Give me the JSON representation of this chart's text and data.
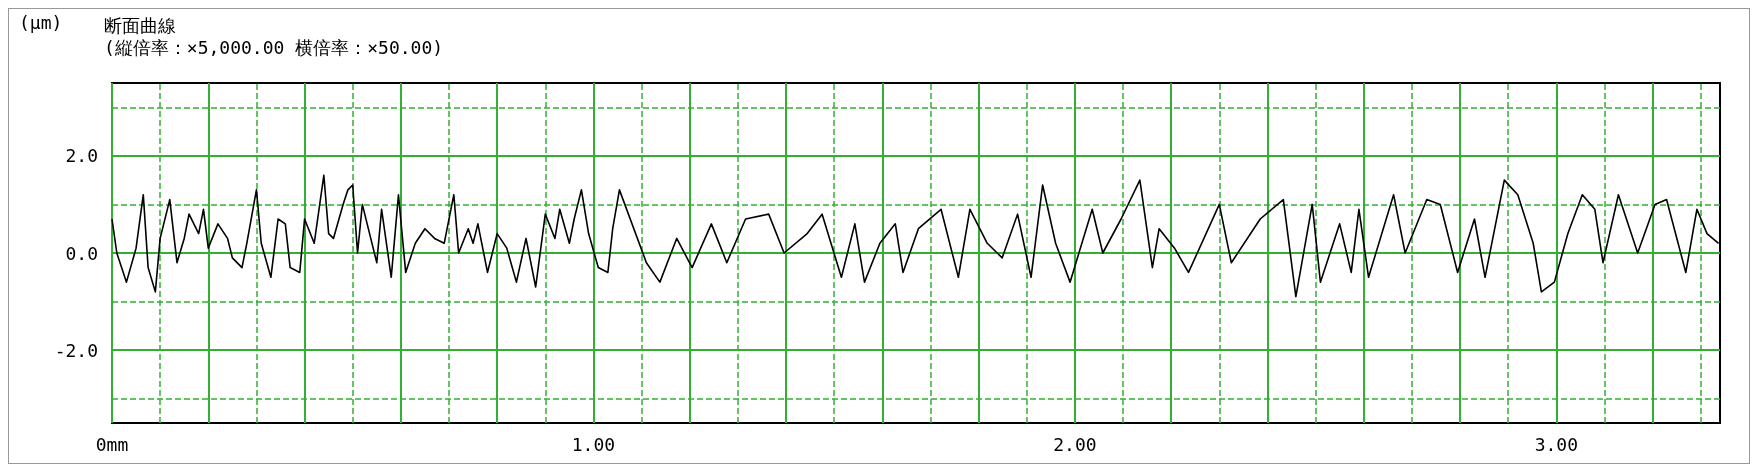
{
  "chart_data": {
    "type": "line",
    "title": "断面曲線",
    "subtitle": "(縦倍率：×5,000.00 横倍率：×50.00)",
    "ylabel": "(µm)",
    "xlim": [
      0,
      3.34
    ],
    "ylim": [
      -3.5,
      3.5
    ],
    "xticks": [
      {
        "value": 0,
        "label": "0mm"
      },
      {
        "value": 0.1,
        "label": null
      },
      {
        "value": 0.2,
        "label": null
      },
      {
        "value": 0.3,
        "label": null
      },
      {
        "value": 0.4,
        "label": null
      },
      {
        "value": 0.5,
        "label": null
      },
      {
        "value": 0.6,
        "label": null
      },
      {
        "value": 0.7,
        "label": null
      },
      {
        "value": 0.8,
        "label": null
      },
      {
        "value": 0.9,
        "label": null
      },
      {
        "value": 1,
        "label": "1.00"
      },
      {
        "value": 1.1,
        "label": null
      },
      {
        "value": 1.2,
        "label": null
      },
      {
        "value": 1.3,
        "label": null
      },
      {
        "value": 1.4,
        "label": null
      },
      {
        "value": 1.5,
        "label": null
      },
      {
        "value": 1.6,
        "label": null
      },
      {
        "value": 1.7,
        "label": null
      },
      {
        "value": 1.8,
        "label": null
      },
      {
        "value": 1.9,
        "label": null
      },
      {
        "value": 2,
        "label": "2.00"
      },
      {
        "value": 2.1,
        "label": null
      },
      {
        "value": 2.2,
        "label": null
      },
      {
        "value": 2.3,
        "label": null
      },
      {
        "value": 2.4,
        "label": null
      },
      {
        "value": 2.5,
        "label": null
      },
      {
        "value": 2.6,
        "label": null
      },
      {
        "value": 2.7,
        "label": null
      },
      {
        "value": 2.8,
        "label": null
      },
      {
        "value": 2.9,
        "label": null
      },
      {
        "value": 3,
        "label": "3.00"
      },
      {
        "value": 3.1,
        "label": null
      },
      {
        "value": 3.2,
        "label": null
      },
      {
        "value": 3.3,
        "label": null
      }
    ],
    "yticks": [
      {
        "value": -3,
        "label": null
      },
      {
        "value": -2,
        "label": "-2.0"
      },
      {
        "value": -1,
        "label": null
      },
      {
        "value": 0,
        "label": "0.0"
      },
      {
        "value": 1,
        "label": null
      },
      {
        "value": 2,
        "label": "2.0"
      },
      {
        "value": 3,
        "label": null
      }
    ],
    "grid": true,
    "marker": "none",
    "line_style": "solid",
    "series": [
      {
        "color": "#000000",
        "x": [
          0,
          0.01,
          0.03,
          0.05,
          0.065,
          0.075,
          0.09,
          0.1,
          0.12,
          0.135,
          0.15,
          0.16,
          0.18,
          0.19,
          0.2,
          0.22,
          0.24,
          0.25,
          0.27,
          0.28,
          0.3,
          0.31,
          0.33,
          0.345,
          0.36,
          0.37,
          0.39,
          0.4,
          0.42,
          0.44,
          0.45,
          0.46,
          0.48,
          0.49,
          0.5,
          0.51,
          0.52,
          0.535,
          0.55,
          0.56,
          0.58,
          0.595,
          0.61,
          0.63,
          0.65,
          0.67,
          0.69,
          0.71,
          0.72,
          0.74,
          0.75,
          0.76,
          0.78,
          0.8,
          0.82,
          0.84,
          0.86,
          0.88,
          0.9,
          0.92,
          0.93,
          0.95,
          0.96,
          0.975,
          0.99,
          1.01,
          1.03,
          1.04,
          1.054,
          1.11,
          1.138,
          1.173,
          1.205,
          1.245,
          1.277,
          1.316,
          1.364,
          1.396,
          1.444,
          1.475,
          1.515,
          1.543,
          1.563,
          1.595,
          1.627,
          1.643,
          1.675,
          1.722,
          1.758,
          1.782,
          1.818,
          1.849,
          1.881,
          1.909,
          1.933,
          1.96,
          1.99,
          2.036,
          2.058,
          2.096,
          2.135,
          2.161,
          2.175,
          2.207,
          2.236,
          2.3,
          2.325,
          2.385,
          2.433,
          2.459,
          2.493,
          2.51,
          2.55,
          2.574,
          2.59,
          2.61,
          2.662,
          2.686,
          2.731,
          2.759,
          2.795,
          2.83,
          2.852,
          2.892,
          2.92,
          2.952,
          2.969,
          2.996,
          3.024,
          3.054,
          3.08,
          3.097,
          3.129,
          3.169,
          3.205,
          3.229,
          3.269,
          3.292,
          3.313,
          3.337
        ],
        "values": [
          0.7,
          0,
          -0.6,
          0.1,
          1.2,
          -0.3,
          -0.8,
          0.3,
          1.1,
          -0.2,
          0.3,
          0.8,
          0.4,
          0.9,
          0.1,
          0.6,
          0.3,
          -0.1,
          -0.3,
          0.2,
          1.3,
          0.2,
          -0.5,
          0.7,
          0.6,
          -0.3,
          -0.4,
          0.7,
          0.2,
          1.6,
          0.4,
          0.3,
          1,
          1.3,
          1.4,
          0,
          1,
          0.4,
          -0.2,
          0.9,
          -0.5,
          1.2,
          -0.4,
          0.2,
          0.5,
          0.3,
          0.2,
          1.2,
          0,
          0.5,
          0.2,
          0.6,
          -0.4,
          0.4,
          0.1,
          -0.6,
          0.3,
          -0.7,
          0.8,
          0.3,
          0.9,
          0.2,
          0.7,
          1.3,
          0.4,
          -0.3,
          -0.4,
          0.5,
          1.3,
          -0.2,
          -0.6,
          0.3,
          -0.3,
          0.6,
          -0.2,
          0.7,
          0.8,
          0,
          0.4,
          0.8,
          -0.5,
          0.6,
          -0.6,
          0.2,
          0.6,
          -0.4,
          0.5,
          0.9,
          -0.5,
          0.9,
          0.2,
          -0.1,
          0.8,
          -0.5,
          1.4,
          0.2,
          -0.6,
          0.9,
          0,
          0.7,
          1.5,
          -0.3,
          0.5,
          0.1,
          -0.4,
          1,
          -0.2,
          0.7,
          1.1,
          -0.9,
          1,
          -0.6,
          0.6,
          -0.4,
          0.9,
          -0.5,
          1.2,
          0,
          1.1,
          1,
          -0.4,
          0.7,
          -0.5,
          1.5,
          1.2,
          0.2,
          -0.8,
          -0.6,
          0.4,
          1.2,
          0.9,
          -0.2,
          1.2,
          0,
          1,
          1.1,
          -0.4,
          0.9,
          0.4,
          0.2
        ]
      }
    ]
  }
}
